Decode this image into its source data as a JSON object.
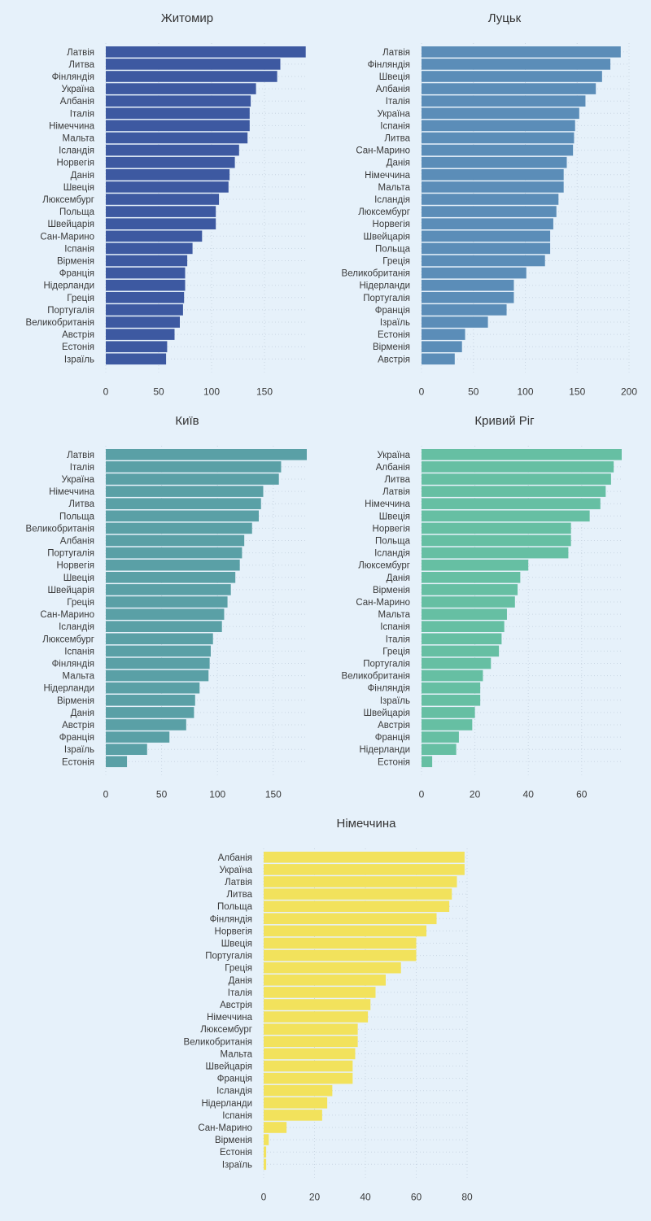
{
  "chart_data": [
    {
      "type": "bar",
      "orientation": "horizontal",
      "title": "Житомир",
      "color": "#3d59a1",
      "xlim": [
        0,
        190
      ],
      "ticks": [
        0,
        50,
        100,
        150
      ],
      "categories": [
        "Латвія",
        "Литва",
        "Фінляндія",
        "Україна",
        "Албанія",
        "Італія",
        "Німеччина",
        "Мальта",
        "Ісландія",
        "Норвегія",
        "Данія",
        "Швеція",
        "Люксембург",
        "Польща",
        "Швейцарія",
        "Сан-Марино",
        "Іспанія",
        "Вірменія",
        "Франція",
        "Нідерланди",
        "Греція",
        "Португалія",
        "Великобританія",
        "Австрія",
        "Естонія",
        "Ізраїль"
      ],
      "values": [
        189,
        165,
        162,
        142,
        137,
        136,
        136,
        134,
        126,
        122,
        117,
        116,
        107,
        104,
        104,
        91,
        82,
        77,
        75,
        75,
        74,
        73,
        70,
        65,
        58,
        57
      ]
    },
    {
      "type": "bar",
      "orientation": "horizontal",
      "title": "Луцьк",
      "color": "#5b8db8",
      "xlim": [
        0,
        200
      ],
      "ticks": [
        0,
        50,
        100,
        150,
        200
      ],
      "categories": [
        "Латвія",
        "Фінляндія",
        "Швеція",
        "Албанія",
        "Італія",
        "Україна",
        "Іспанія",
        "Литва",
        "Сан-Марино",
        "Данія",
        "Німеччина",
        "Мальта",
        "Ісландія",
        "Люксембург",
        "Норвегія",
        "Швейцарія",
        "Польща",
        "Греція",
        "Великобританія",
        "Нідерланди",
        "Португалія",
        "Франція",
        "Ізраїль",
        "Естонія",
        "Вірменія",
        "Австрія"
      ],
      "values": [
        192,
        182,
        174,
        168,
        158,
        152,
        148,
        147,
        146,
        140,
        137,
        137,
        132,
        130,
        127,
        124,
        124,
        119,
        101,
        89,
        89,
        82,
        64,
        42,
        39,
        32
      ]
    },
    {
      "type": "bar",
      "orientation": "horizontal",
      "title": "Київ",
      "color": "#5aa0a6",
      "xlim": [
        0,
        180
      ],
      "ticks": [
        0,
        50,
        100,
        150
      ],
      "categories": [
        "Латвія",
        "Італія",
        "Україна",
        "Німеччина",
        "Литва",
        "Польща",
        "Великобританія",
        "Албанія",
        "Португалія",
        "Норвегія",
        "Швеція",
        "Швейцарія",
        "Греція",
        "Сан-Марино",
        "Ісландія",
        "Люксембург",
        "Іспанія",
        "Фінляндія",
        "Мальта",
        "Нідерланди",
        "Вірменія",
        "Данія",
        "Австрія",
        "Франція",
        "Ізраїль",
        "Естонія"
      ],
      "values": [
        180,
        157,
        155,
        141,
        139,
        137,
        131,
        124,
        122,
        120,
        116,
        112,
        109,
        106,
        104,
        96,
        94,
        93,
        92,
        84,
        80,
        79,
        72,
        57,
        37,
        19
      ]
    },
    {
      "type": "bar",
      "orientation": "horizontal",
      "title": "Кривий Ріг",
      "color": "#66bfa3",
      "xlim": [
        0,
        75
      ],
      "ticks": [
        0,
        20,
        40,
        60
      ],
      "categories": [
        "Україна",
        "Албанія",
        "Литва",
        "Латвія",
        "Німеччина",
        "Швеція",
        "Норвегія",
        "Польща",
        "Ісландія",
        "Люксембург",
        "Данія",
        "Вірменія",
        "Сан-Марино",
        "Мальта",
        "Іспанія",
        "Італія",
        "Греція",
        "Португалія",
        "Великобританія",
        "Фінляндія",
        "Ізраїль",
        "Швейцарія",
        "Австрія",
        "Франція",
        "Нідерланди",
        "Естонія"
      ],
      "values": [
        75,
        72,
        71,
        69,
        67,
        63,
        56,
        56,
        55,
        40,
        37,
        36,
        35,
        32,
        31,
        30,
        29,
        26,
        23,
        22,
        22,
        20,
        19,
        14,
        13,
        4
      ]
    },
    {
      "type": "bar",
      "orientation": "horizontal",
      "title": "Німеччина",
      "color": "#f2e25c",
      "xlim": [
        0,
        80
      ],
      "ticks": [
        0,
        20,
        40,
        60,
        80
      ],
      "categories": [
        "Албанія",
        "Україна",
        "Латвія",
        "Литва",
        "Польща",
        "Фінляндія",
        "Норвегія",
        "Швеція",
        "Португалія",
        "Греція",
        "Данія",
        "Італія",
        "Австрія",
        "Німеччина",
        "Люксембург",
        "Великобританія",
        "Мальта",
        "Швейцарія",
        "Франція",
        "Ісландія",
        "Нідерланди",
        "Іспанія",
        "Сан-Марино",
        "Вірменія",
        "Естонія",
        "Ізраїль"
      ],
      "values": [
        79,
        79,
        76,
        74,
        73,
        68,
        64,
        60,
        60,
        54,
        48,
        44,
        42,
        41,
        37,
        37,
        36,
        35,
        35,
        27,
        25,
        23,
        9,
        2,
        1,
        1
      ]
    }
  ]
}
